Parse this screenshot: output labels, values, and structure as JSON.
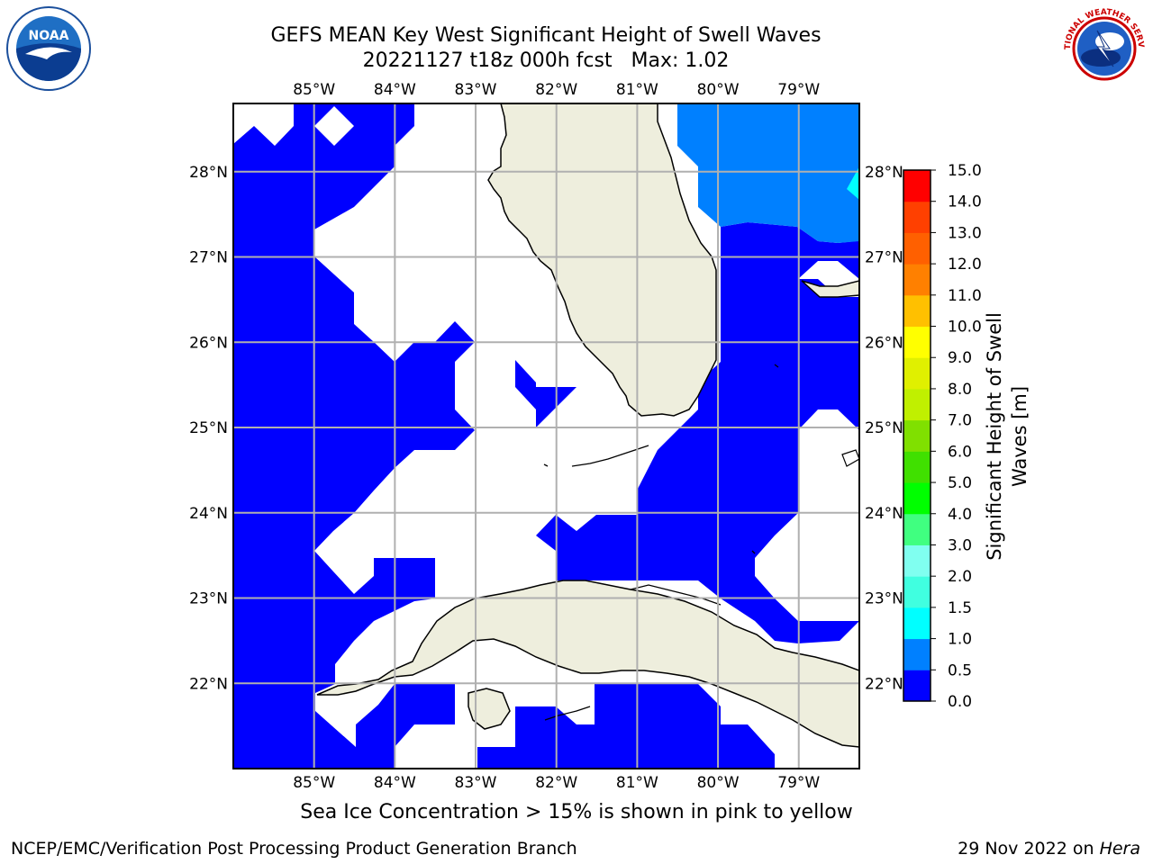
{
  "title": {
    "line1": "GEFS MEAN Key West Significant Height of Swell Waves",
    "line2": "20221127 t18z 000h fcst   Max: 1.02"
  },
  "logos": {
    "left": "noaa-logo",
    "right": "nws-logo",
    "noaa_text": "NOAA",
    "nws_text": "NATIONAL WEATHER SERVICE"
  },
  "map": {
    "lon_range": [
      -86.0,
      -78.25
    ],
    "lat_range": [
      21.0,
      28.8
    ],
    "lon_labels": [
      "85°W",
      "84°W",
      "83°W",
      "82°W",
      "81°W",
      "80°W",
      "79°W"
    ],
    "lat_labels": [
      "22°N",
      "23°N",
      "24°N",
      "25°N",
      "26°N",
      "27°N",
      "28°N"
    ],
    "colors": {
      "ocean_fill": "#0000ff",
      "swell_0_5_1_0": "#0080ff",
      "swell_1_0_1_5": "#00ffff",
      "land": "#eeeedd",
      "grid": "#b0b0b0"
    }
  },
  "colorbar": {
    "title_line1": "Significant Height of Swell",
    "title_line2": "Waves [m]",
    "ticks": [
      "0.0",
      "0.5",
      "1.0",
      "1.5",
      "2.0",
      "3.0",
      "4.0",
      "5.0",
      "6.0",
      "7.0",
      "8.0",
      "9.0",
      "10.0",
      "11.0",
      "12.0",
      "13.0",
      "14.0",
      "15.0"
    ],
    "colors": [
      "#0000ff",
      "#0080ff",
      "#00ffff",
      "#40ffe0",
      "#80fff0",
      "#40ff80",
      "#00ff00",
      "#40e000",
      "#80e000",
      "#c0f000",
      "#e0f000",
      "#ffff00",
      "#ffc000",
      "#ff8000",
      "#ff6000",
      "#ff4000",
      "#ff0000"
    ]
  },
  "caption": "Sea Ice Concentration > 15% is shown in pink to yellow",
  "footer": {
    "left": "NCEP/EMC/Verification Post Processing Product Generation Branch",
    "right_date": "29 Nov 2022 on ",
    "right_host": "Hera"
  }
}
